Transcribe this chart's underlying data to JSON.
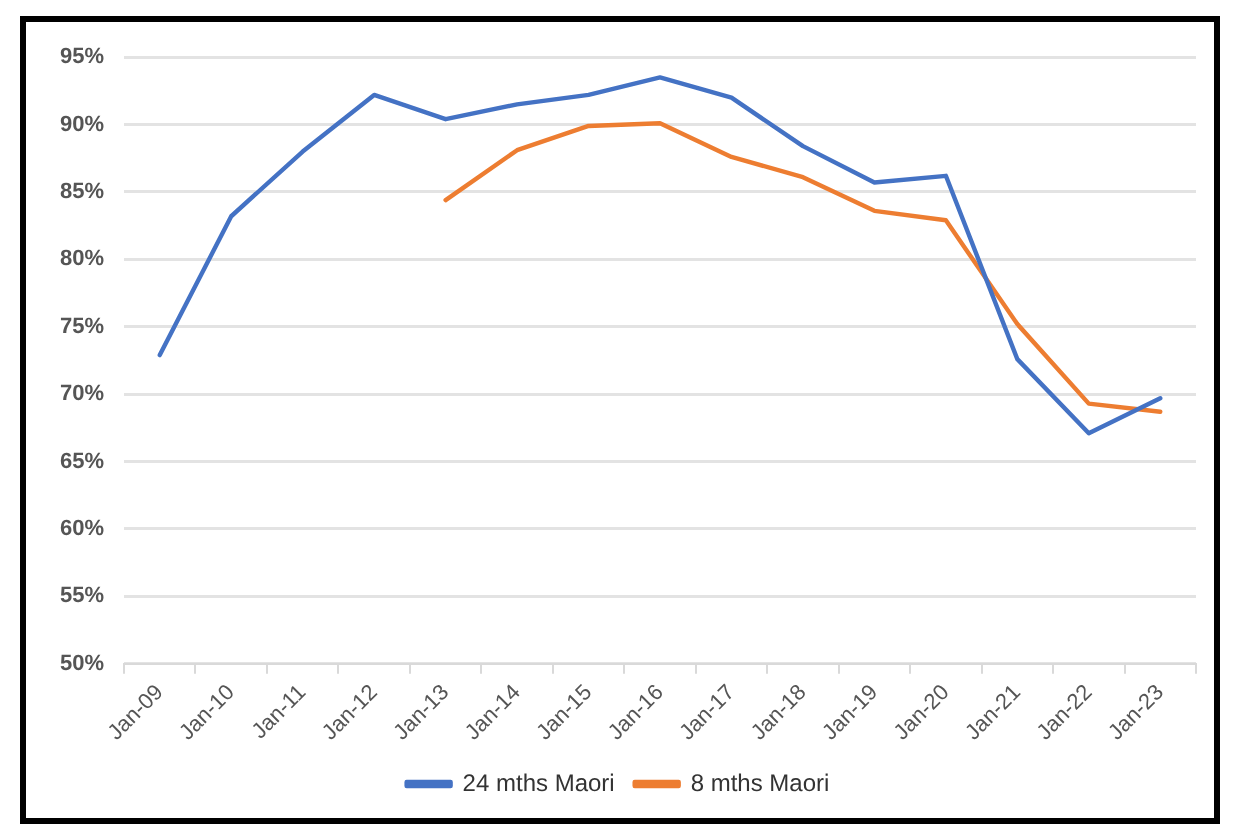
{
  "chart_data": {
    "type": "line",
    "categories": [
      "Jan-09",
      "Jan-10",
      "Jan-11",
      "Jan-12",
      "Jan-13",
      "Jan-14",
      "Jan-15",
      "Jan-16",
      "Jan-17",
      "Jan-18",
      "Jan-19",
      "Jan-20",
      "Jan-21",
      "Jan-22",
      "Jan-23"
    ],
    "series": [
      {
        "name": "24 mths Maori",
        "color": "#4472c4",
        "values": [
          72.9,
          83.2,
          88,
          92.2,
          90.4,
          91.5,
          92.2,
          93.5,
          92,
          88.4,
          85.7,
          86.2,
          72.6,
          67.1,
          69.7
        ]
      },
      {
        "name": "8 mths Maori",
        "color": "#ed7d31",
        "values": [
          null,
          null,
          null,
          null,
          84.4,
          88.1,
          89.9,
          90.1,
          87.6,
          86.1,
          83.6,
          82.9,
          75.2,
          69.3,
          68.7
        ]
      }
    ],
    "ylim": [
      50,
      95
    ],
    "yticks": [
      {
        "value": 50,
        "label": "50%"
      },
      {
        "value": 55,
        "label": "55%"
      },
      {
        "value": 60,
        "label": "60%"
      },
      {
        "value": 65,
        "label": "65%"
      },
      {
        "value": 70,
        "label": "70%"
      },
      {
        "value": 75,
        "label": "75%"
      },
      {
        "value": 80,
        "label": "80%"
      },
      {
        "value": 85,
        "label": "85%"
      },
      {
        "value": 90,
        "label": "90%"
      },
      {
        "value": 95,
        "label": "95%"
      }
    ],
    "grid": "y",
    "legend": "bottom",
    "marker": "none",
    "line_style": "solid"
  }
}
